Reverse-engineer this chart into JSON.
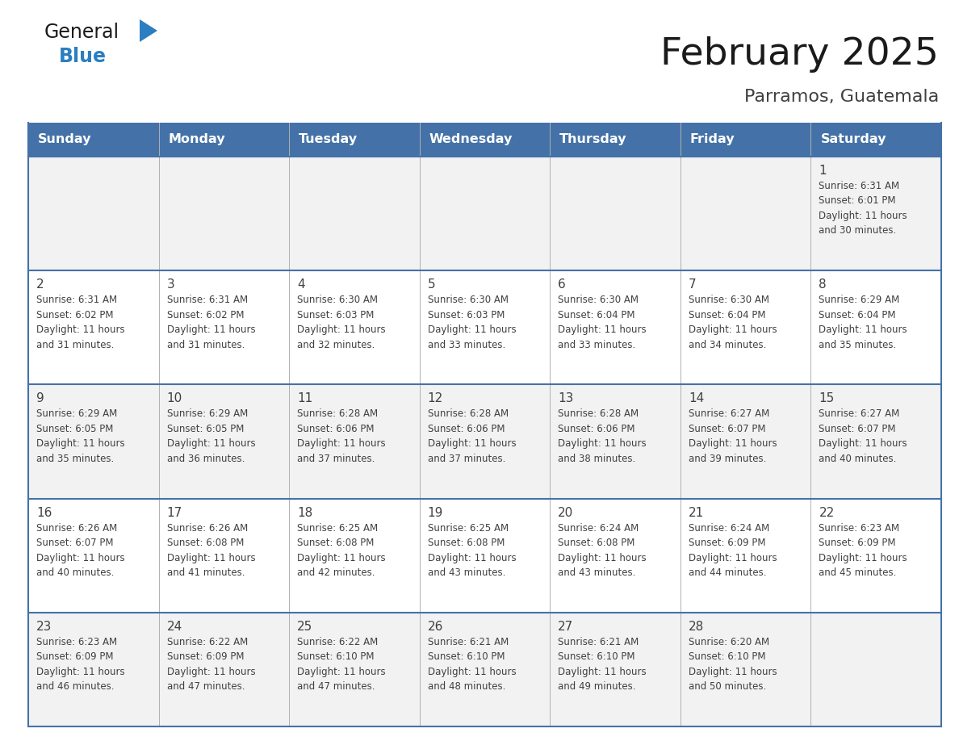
{
  "title": "February 2025",
  "subtitle": "Parramos, Guatemala",
  "header_bg": "#4472A8",
  "header_text_color": "#FFFFFF",
  "days_of_week": [
    "Sunday",
    "Monday",
    "Tuesday",
    "Wednesday",
    "Thursday",
    "Friday",
    "Saturday"
  ],
  "row_bg_odd": "#F2F2F2",
  "row_bg_even": "#FFFFFF",
  "divider_color": "#4472A8",
  "cell_text_color": "#404040",
  "day_num_color": "#404040",
  "calendar_data": [
    [
      null,
      null,
      null,
      null,
      null,
      null,
      {
        "day": 1,
        "sunrise": "6:31 AM",
        "sunset": "6:01 PM",
        "daylight": "11 hours\nand 30 minutes."
      }
    ],
    [
      {
        "day": 2,
        "sunrise": "6:31 AM",
        "sunset": "6:02 PM",
        "daylight": "11 hours\nand 31 minutes."
      },
      {
        "day": 3,
        "sunrise": "6:31 AM",
        "sunset": "6:02 PM",
        "daylight": "11 hours\nand 31 minutes."
      },
      {
        "day": 4,
        "sunrise": "6:30 AM",
        "sunset": "6:03 PM",
        "daylight": "11 hours\nand 32 minutes."
      },
      {
        "day": 5,
        "sunrise": "6:30 AM",
        "sunset": "6:03 PM",
        "daylight": "11 hours\nand 33 minutes."
      },
      {
        "day": 6,
        "sunrise": "6:30 AM",
        "sunset": "6:04 PM",
        "daylight": "11 hours\nand 33 minutes."
      },
      {
        "day": 7,
        "sunrise": "6:30 AM",
        "sunset": "6:04 PM",
        "daylight": "11 hours\nand 34 minutes."
      },
      {
        "day": 8,
        "sunrise": "6:29 AM",
        "sunset": "6:04 PM",
        "daylight": "11 hours\nand 35 minutes."
      }
    ],
    [
      {
        "day": 9,
        "sunrise": "6:29 AM",
        "sunset": "6:05 PM",
        "daylight": "11 hours\nand 35 minutes."
      },
      {
        "day": 10,
        "sunrise": "6:29 AM",
        "sunset": "6:05 PM",
        "daylight": "11 hours\nand 36 minutes."
      },
      {
        "day": 11,
        "sunrise": "6:28 AM",
        "sunset": "6:06 PM",
        "daylight": "11 hours\nand 37 minutes."
      },
      {
        "day": 12,
        "sunrise": "6:28 AM",
        "sunset": "6:06 PM",
        "daylight": "11 hours\nand 37 minutes."
      },
      {
        "day": 13,
        "sunrise": "6:28 AM",
        "sunset": "6:06 PM",
        "daylight": "11 hours\nand 38 minutes."
      },
      {
        "day": 14,
        "sunrise": "6:27 AM",
        "sunset": "6:07 PM",
        "daylight": "11 hours\nand 39 minutes."
      },
      {
        "day": 15,
        "sunrise": "6:27 AM",
        "sunset": "6:07 PM",
        "daylight": "11 hours\nand 40 minutes."
      }
    ],
    [
      {
        "day": 16,
        "sunrise": "6:26 AM",
        "sunset": "6:07 PM",
        "daylight": "11 hours\nand 40 minutes."
      },
      {
        "day": 17,
        "sunrise": "6:26 AM",
        "sunset": "6:08 PM",
        "daylight": "11 hours\nand 41 minutes."
      },
      {
        "day": 18,
        "sunrise": "6:25 AM",
        "sunset": "6:08 PM",
        "daylight": "11 hours\nand 42 minutes."
      },
      {
        "day": 19,
        "sunrise": "6:25 AM",
        "sunset": "6:08 PM",
        "daylight": "11 hours\nand 43 minutes."
      },
      {
        "day": 20,
        "sunrise": "6:24 AM",
        "sunset": "6:08 PM",
        "daylight": "11 hours\nand 43 minutes."
      },
      {
        "day": 21,
        "sunrise": "6:24 AM",
        "sunset": "6:09 PM",
        "daylight": "11 hours\nand 44 minutes."
      },
      {
        "day": 22,
        "sunrise": "6:23 AM",
        "sunset": "6:09 PM",
        "daylight": "11 hours\nand 45 minutes."
      }
    ],
    [
      {
        "day": 23,
        "sunrise": "6:23 AM",
        "sunset": "6:09 PM",
        "daylight": "11 hours\nand 46 minutes."
      },
      {
        "day": 24,
        "sunrise": "6:22 AM",
        "sunset": "6:09 PM",
        "daylight": "11 hours\nand 47 minutes."
      },
      {
        "day": 25,
        "sunrise": "6:22 AM",
        "sunset": "6:10 PM",
        "daylight": "11 hours\nand 47 minutes."
      },
      {
        "day": 26,
        "sunrise": "6:21 AM",
        "sunset": "6:10 PM",
        "daylight": "11 hours\nand 48 minutes."
      },
      {
        "day": 27,
        "sunrise": "6:21 AM",
        "sunset": "6:10 PM",
        "daylight": "11 hours\nand 49 minutes."
      },
      {
        "day": 28,
        "sunrise": "6:20 AM",
        "sunset": "6:10 PM",
        "daylight": "11 hours\nand 50 minutes."
      },
      null
    ]
  ],
  "logo_text1": "General",
  "logo_text2": "Blue",
  "logo_color1": "#1a1a1a",
  "logo_color2": "#2B7EC1",
  "logo_triangle_color": "#2B7EC1",
  "fig_width": 11.88,
  "fig_height": 9.18,
  "dpi": 100
}
